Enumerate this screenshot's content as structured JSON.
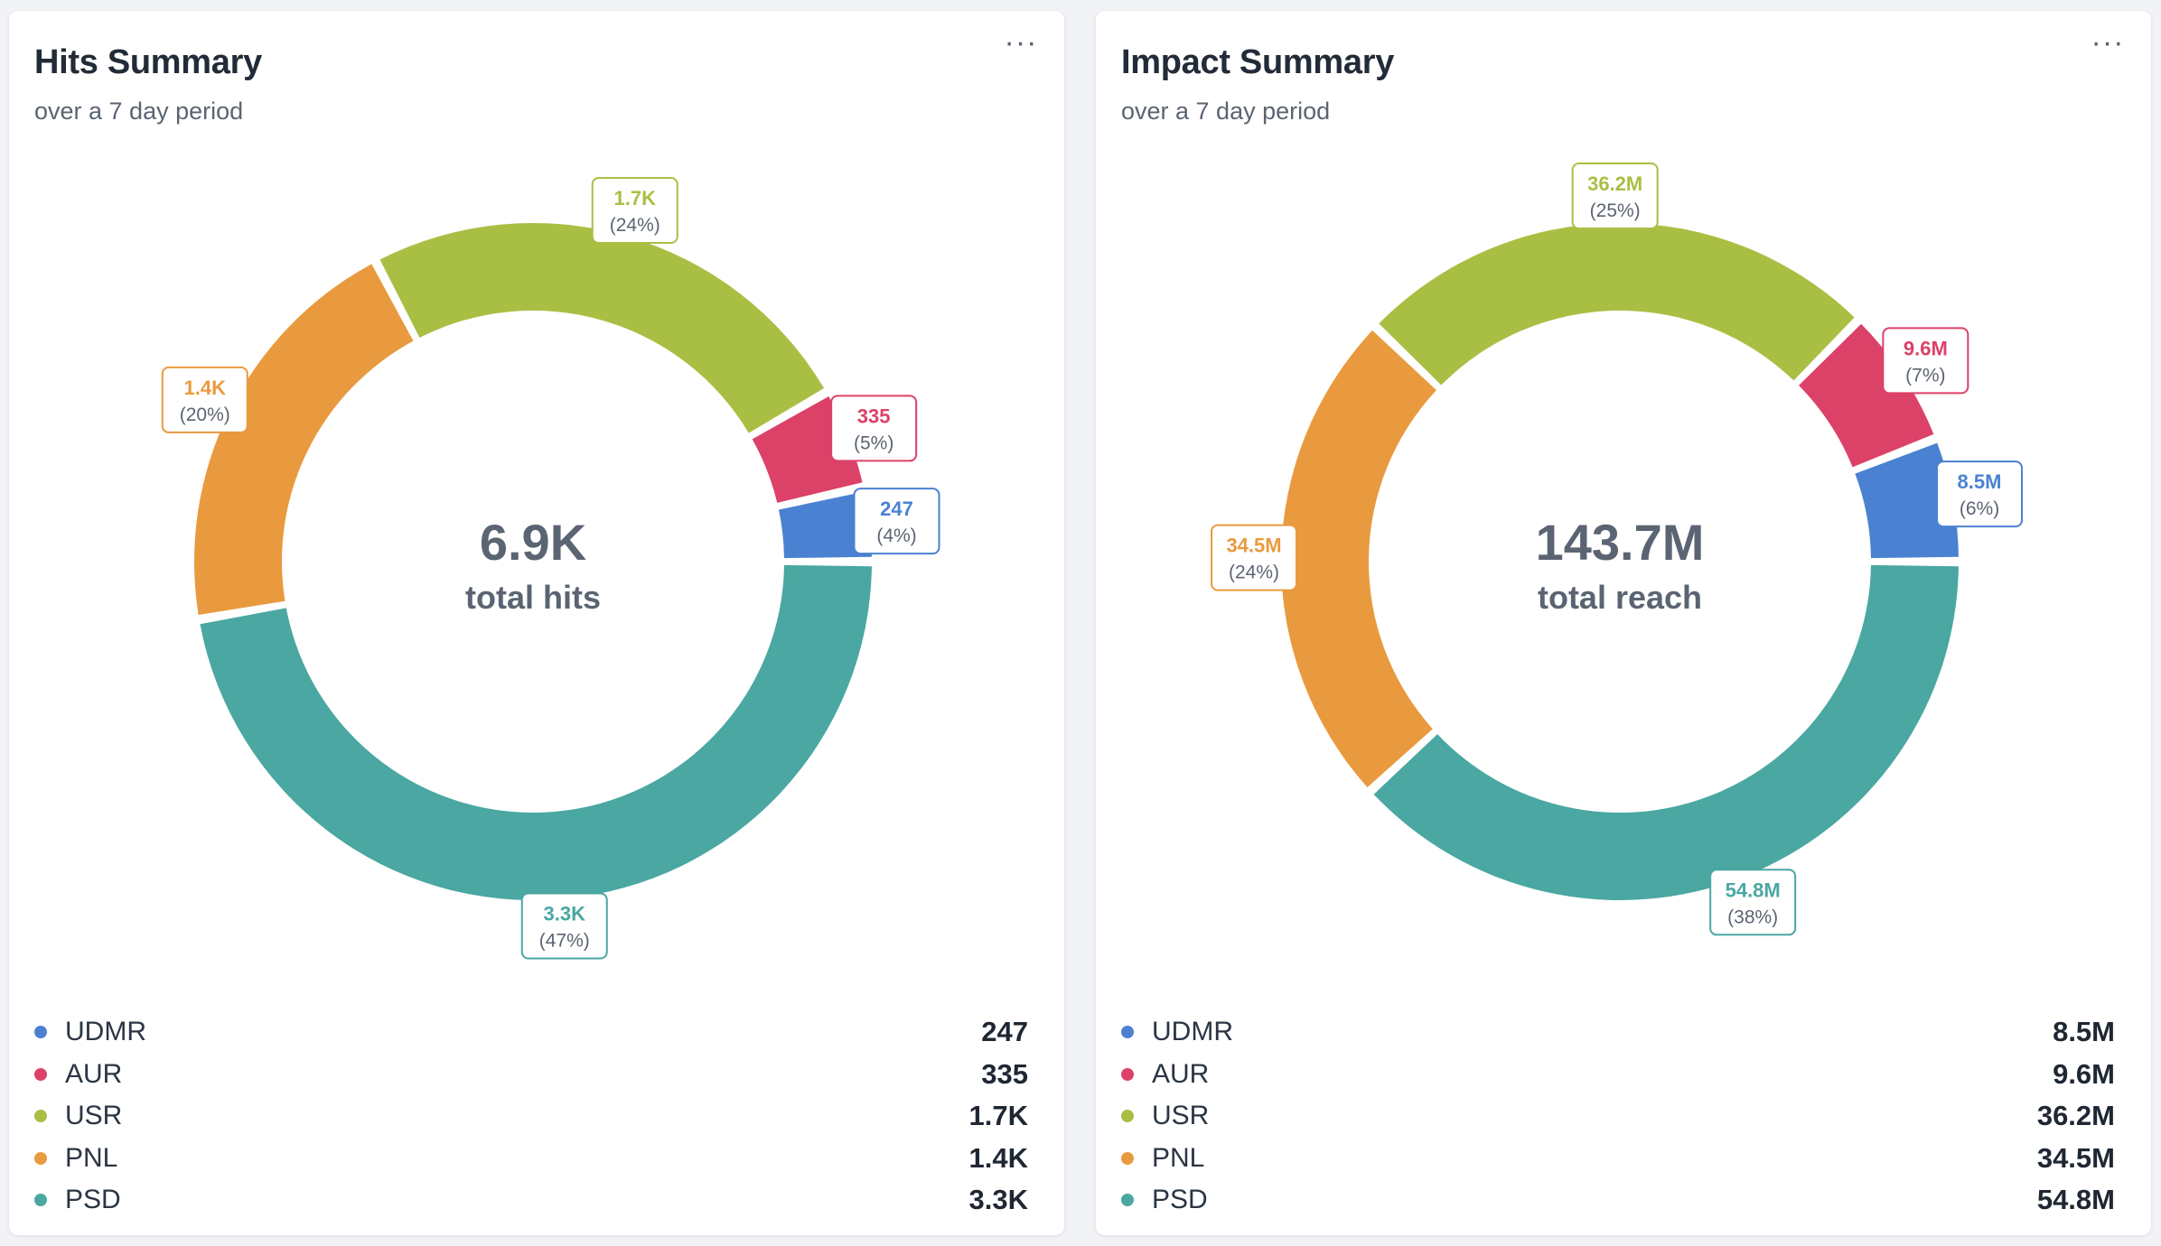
{
  "colors": {
    "UDMR": "#4a82d1",
    "AUR": "#dc4168",
    "USR": "#a9bf44",
    "PNL": "#e99a3e",
    "PSD": "#4aa7a2"
  },
  "menu_icon": "more-horizontal-icon",
  "chart_data": [
    {
      "type": "pie",
      "title": "Hits Summary",
      "subtitle": "over a 7 day period",
      "center_value": "6.9K",
      "center_label": "total hits",
      "slices": [
        {
          "name": "UDMR",
          "value": 247,
          "display": "247",
          "percent": "(4%)"
        },
        {
          "name": "AUR",
          "value": 335,
          "display": "335",
          "percent": "(5%)"
        },
        {
          "name": "USR",
          "value": 1700,
          "display": "1.7K",
          "percent": "(24%)"
        },
        {
          "name": "PNL",
          "value": 1400,
          "display": "1.4K",
          "percent": "(20%)"
        },
        {
          "name": "PSD",
          "value": 3300,
          "display": "3.3K",
          "percent": "(47%)"
        }
      ]
    },
    {
      "type": "pie",
      "title": "Impact Summary",
      "subtitle": "over a 7 day period",
      "center_value": "143.7M",
      "center_label": "total reach",
      "slices": [
        {
          "name": "UDMR",
          "value": 8.5,
          "display": "8.5M",
          "percent": "(6%)"
        },
        {
          "name": "AUR",
          "value": 9.6,
          "display": "9.6M",
          "percent": "(7%)"
        },
        {
          "name": "USR",
          "value": 36.2,
          "display": "36.2M",
          "percent": "(25%)"
        },
        {
          "name": "PNL",
          "value": 34.5,
          "display": "34.5M",
          "percent": "(24%)"
        },
        {
          "name": "PSD",
          "value": 54.8,
          "display": "54.8M",
          "percent": "(38%)"
        }
      ]
    }
  ]
}
